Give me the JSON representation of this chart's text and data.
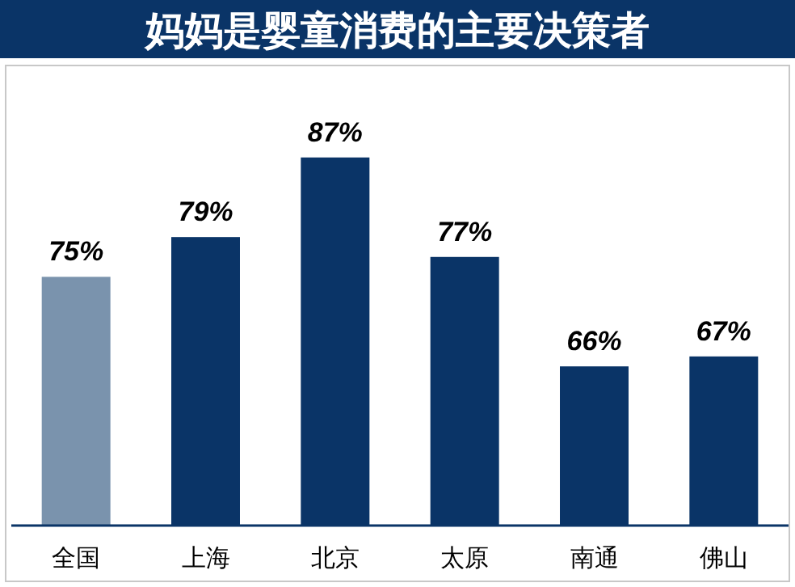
{
  "chart_data": {
    "type": "bar",
    "title": "妈妈是婴童消费的主要决策者",
    "categories": [
      "全国",
      "上海",
      "北京",
      "太原",
      "南通",
      "佛山"
    ],
    "values": [
      75,
      79,
      87,
      77,
      66,
      67
    ],
    "colors": [
      "#7a93ad",
      "#0a3467",
      "#0a3467",
      "#0a3467",
      "#0a3467",
      "#0a3467"
    ],
    "value_labels": [
      "75%",
      "79%",
      "87%",
      "77%",
      "66%",
      "67%"
    ],
    "ylim": [
      50,
      96
    ],
    "tick_labels": "x"
  }
}
